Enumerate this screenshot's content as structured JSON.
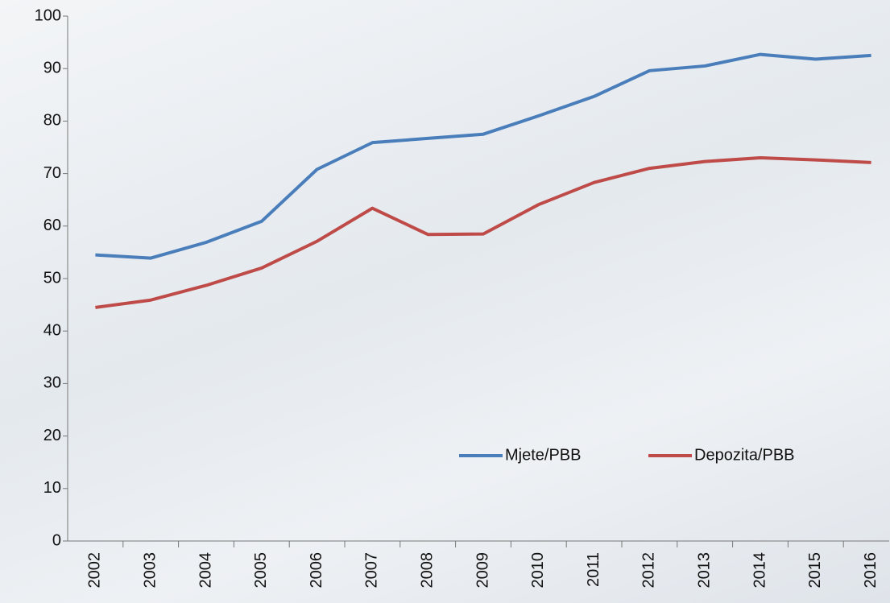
{
  "chart_data": {
    "type": "line",
    "categories": [
      "2002",
      "2003",
      "2004",
      "2005",
      "2006",
      "2007",
      "2008",
      "2009",
      "2010",
      "2011",
      "2012",
      "2013",
      "2014",
      "2015",
      "2016"
    ],
    "series": [
      {
        "name": "Mjete/PBB",
        "color": "#4a7ebb",
        "values": [
          54.5,
          53.9,
          56.9,
          60.9,
          70.8,
          75.9,
          76.7,
          77.5,
          81.0,
          84.7,
          89.6,
          90.5,
          92.7,
          91.8,
          92.5
        ]
      },
      {
        "name": "Depozita/PBB",
        "color": "#be4b48",
        "values": [
          44.5,
          45.9,
          48.7,
          52.0,
          57.1,
          63.4,
          58.4,
          58.5,
          64.1,
          68.3,
          71.0,
          72.3,
          73.0,
          72.6,
          72.1
        ]
      }
    ],
    "ylim": [
      0,
      100
    ],
    "yticks": [
      0,
      10,
      20,
      30,
      40,
      50,
      60,
      70,
      80,
      90,
      100
    ],
    "grid": false,
    "legend_position": "lower right"
  }
}
